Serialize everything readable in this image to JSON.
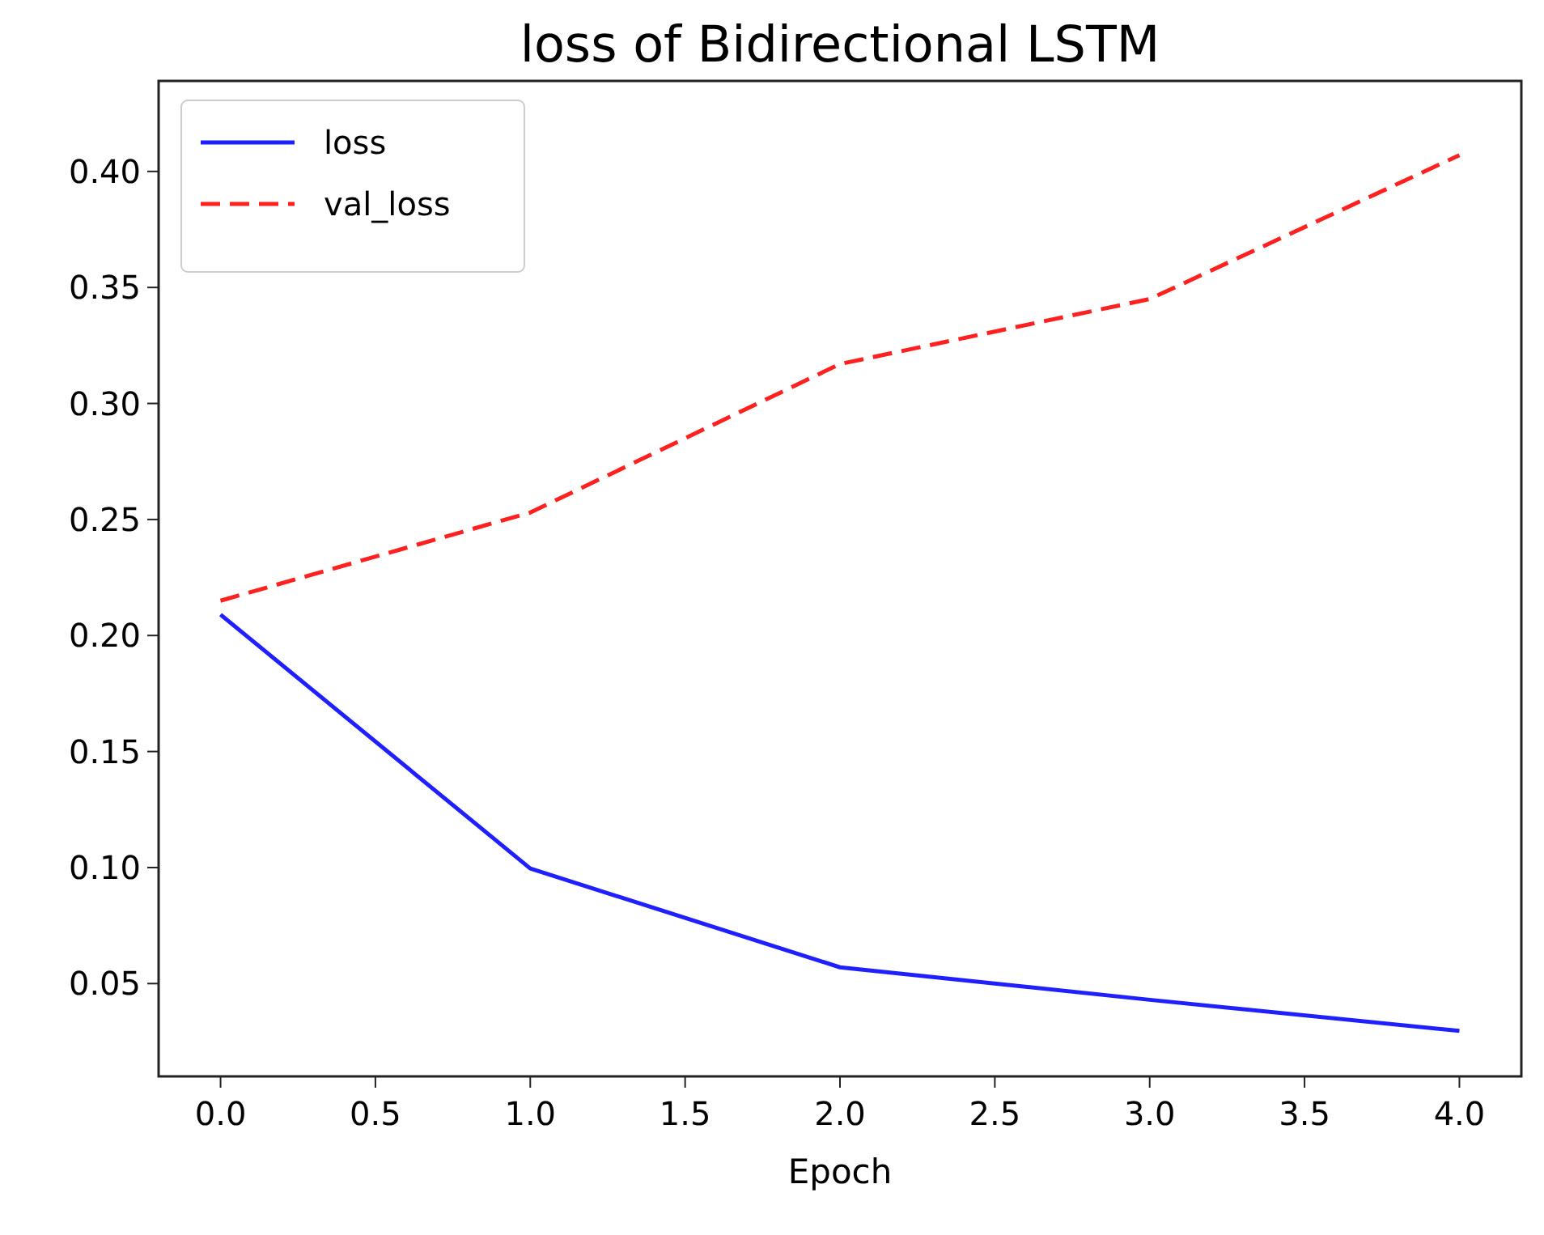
{
  "chart_data": {
    "type": "line",
    "title": "loss of Bidirectional LSTM",
    "xlabel": "Epoch",
    "x": [
      0,
      1,
      2,
      3,
      4
    ],
    "series": [
      {
        "name": "loss",
        "color": "#1f1fff",
        "line_style": "solid",
        "values": [
          0.209,
          0.0996,
          0.057,
          0.043,
          0.0296
        ]
      },
      {
        "name": "val_loss",
        "color": "#ff2020",
        "line_style": "dashed",
        "values": [
          0.215,
          0.253,
          0.317,
          0.345,
          0.407
        ]
      }
    ],
    "xlim": [
      -0.2,
      4.2
    ],
    "ylim": [
      0.01,
      0.439
    ],
    "xticks": [
      {
        "value": 0,
        "label": "0.0"
      },
      {
        "value": 0.5,
        "label": "0.5"
      },
      {
        "value": 1,
        "label": "1.0"
      },
      {
        "value": 1.5,
        "label": "1.5"
      },
      {
        "value": 2,
        "label": "2.0"
      },
      {
        "value": 2.5,
        "label": "2.5"
      },
      {
        "value": 3,
        "label": "3.0"
      },
      {
        "value": 3.5,
        "label": "3.5"
      },
      {
        "value": 4,
        "label": "4.0"
      }
    ],
    "yticks": [
      0.05,
      {
        "value": 0.1,
        "label": "0.10"
      },
      0.15,
      {
        "value": 0.2,
        "label": "0.20"
      },
      0.25,
      {
        "value": 0.3,
        "label": "0.30"
      },
      0.35,
      {
        "value": 0.4,
        "label": "0.40"
      }
    ],
    "legend": "top left",
    "grid": false,
    "marker": "none"
  }
}
